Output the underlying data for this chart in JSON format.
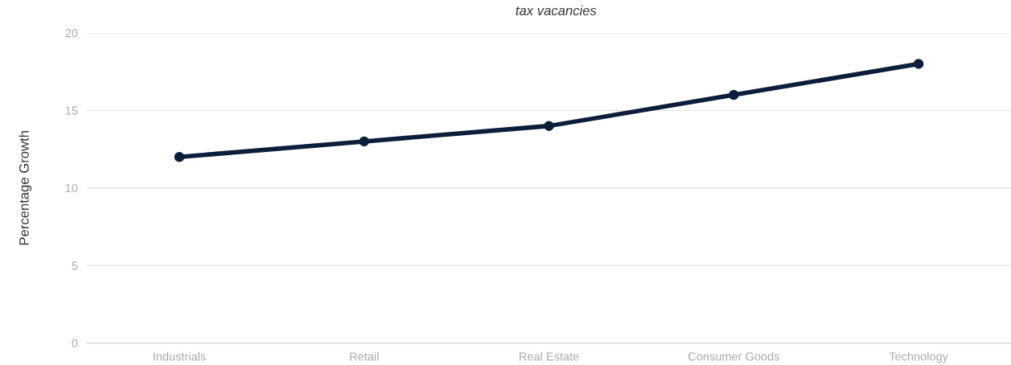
{
  "chart_data": {
    "type": "line",
    "subtitle": "tax vacancies",
    "ylabel": "Percentage Growth",
    "categories": [
      "Industrials",
      "Retail",
      "Real Estate",
      "Consumer Goods",
      "Technology"
    ],
    "series": [
      {
        "color": "#0b1f3a",
        "values": [
          12,
          13,
          14,
          16,
          18
        ]
      }
    ],
    "ylim": [
      0,
      20
    ],
    "yticks": [
      0,
      5,
      10,
      15,
      20
    ],
    "grid": "y",
    "marker": "circle",
    "line_style": "solid"
  }
}
